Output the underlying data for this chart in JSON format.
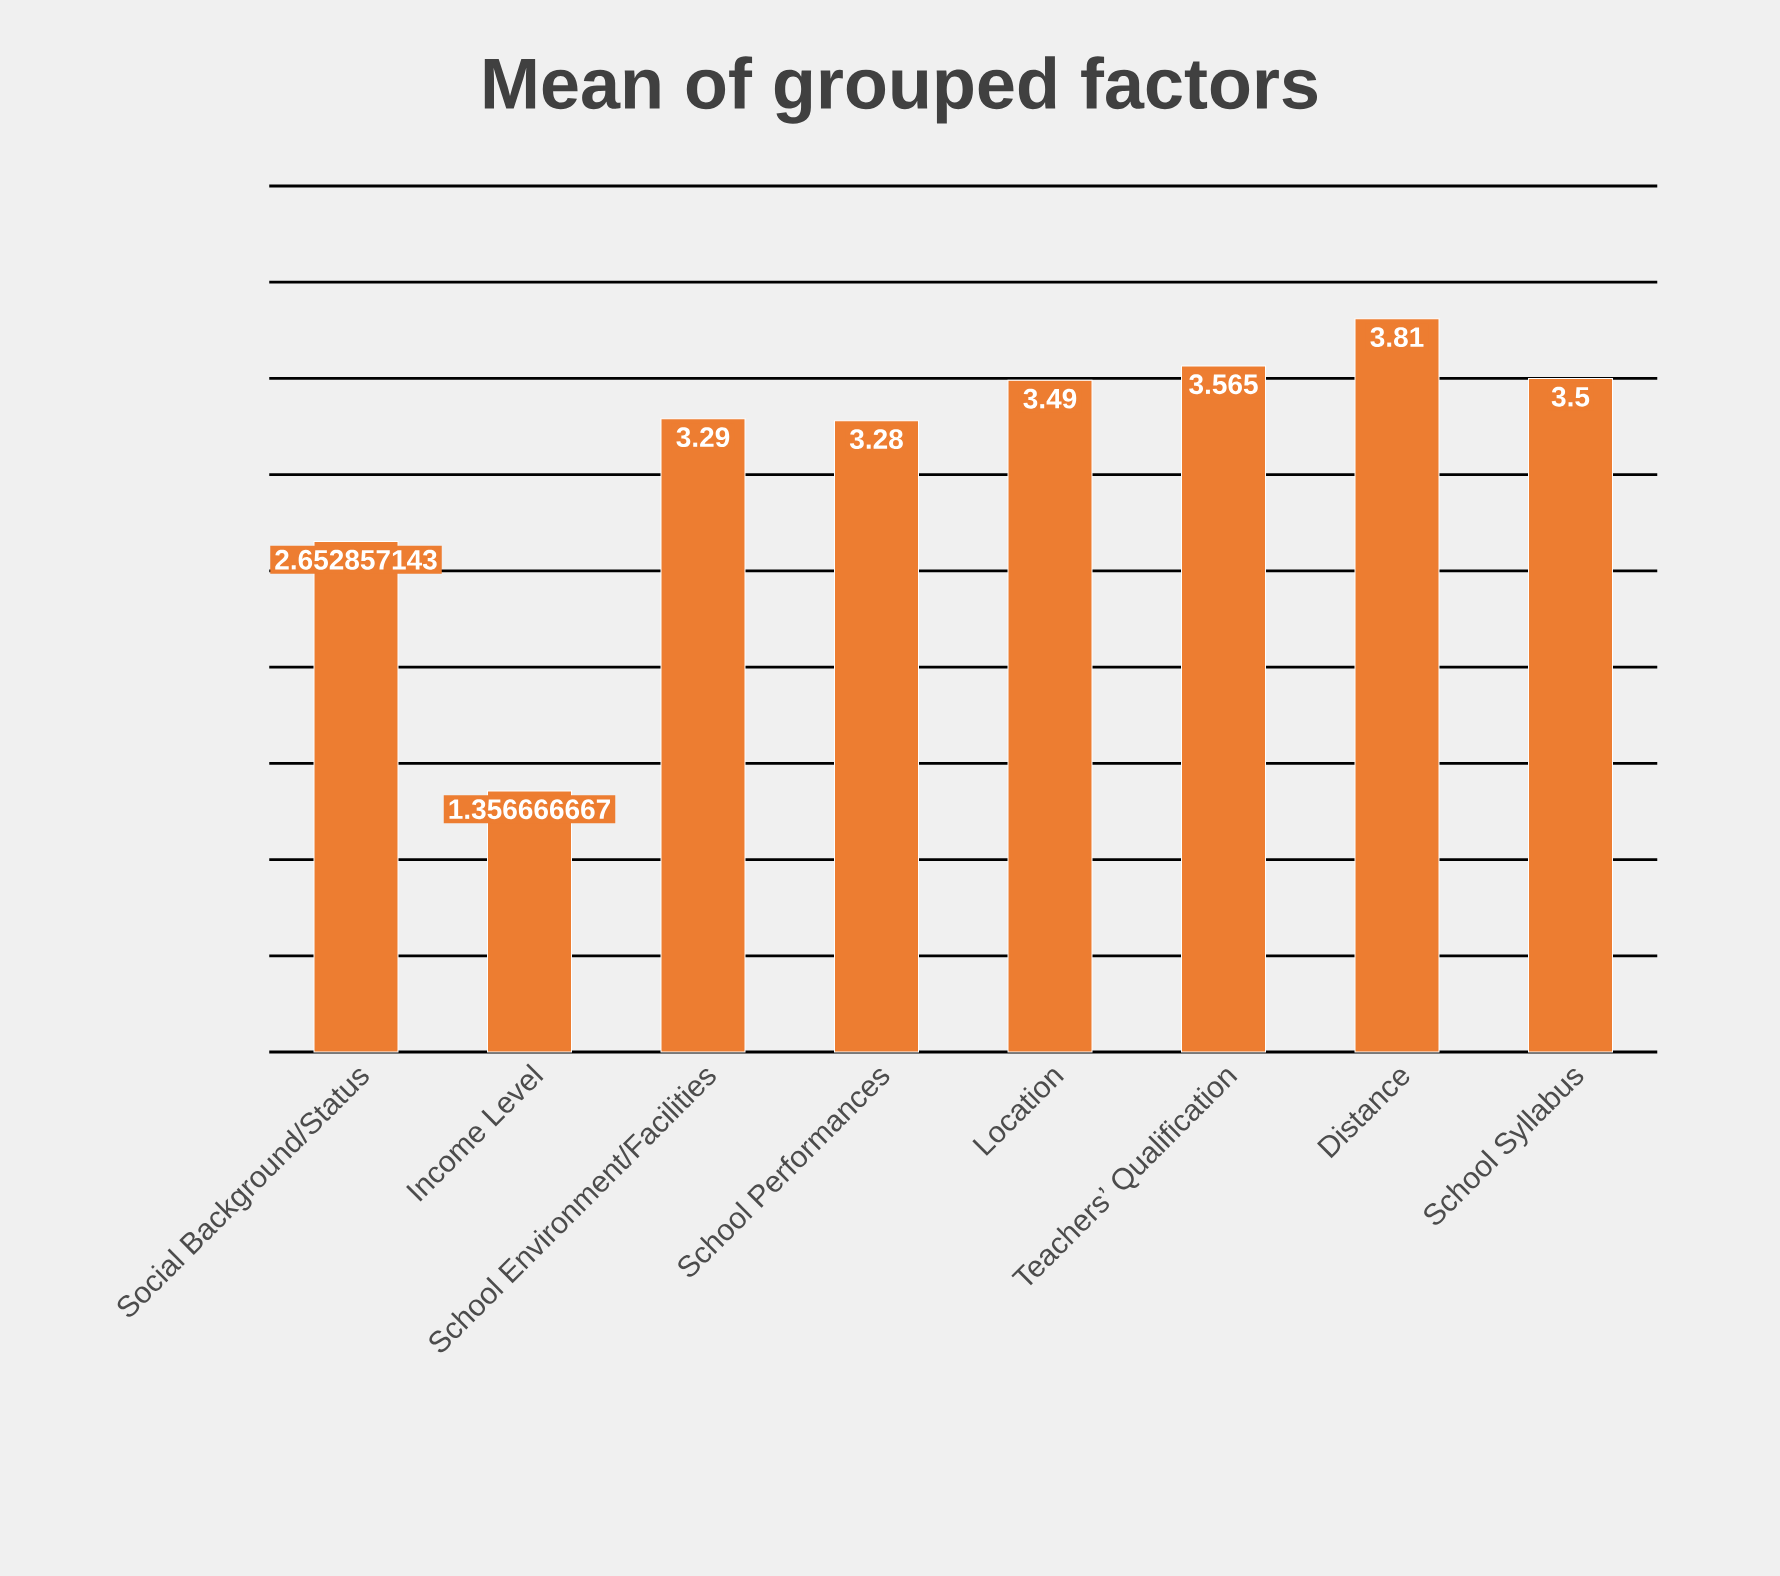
{
  "chart_data": {
    "type": "bar",
    "title": "Mean of grouped factors",
    "categories": [
      "Social Background/Status",
      "Income Level",
      "School Environment/Facilities",
      "School Performances",
      "Location",
      "Teachers’ Qualification",
      "Distance",
      "School Syllabus"
    ],
    "values": [
      2.652857143,
      1.356666667,
      3.29,
      3.28,
      3.49,
      3.565,
      3.81,
      3.5
    ],
    "color": "#ed7d31",
    "data_labels": true,
    "grid": "y",
    "ylim": [
      0,
      4.5
    ],
    "yticks": [
      {
        "value": 0,
        "label": null
      },
      {
        "value": 0.5,
        "label": null
      },
      {
        "value": 1,
        "label": null
      },
      {
        "value": 1.5,
        "label": null
      },
      {
        "value": 2,
        "label": null
      },
      {
        "value": 2.5,
        "label": null
      },
      {
        "value": 3,
        "label": null
      },
      {
        "value": 3.5,
        "label": null
      },
      {
        "value": 4,
        "label": null
      },
      {
        "value": 4.5,
        "label": null
      }
    ]
  }
}
